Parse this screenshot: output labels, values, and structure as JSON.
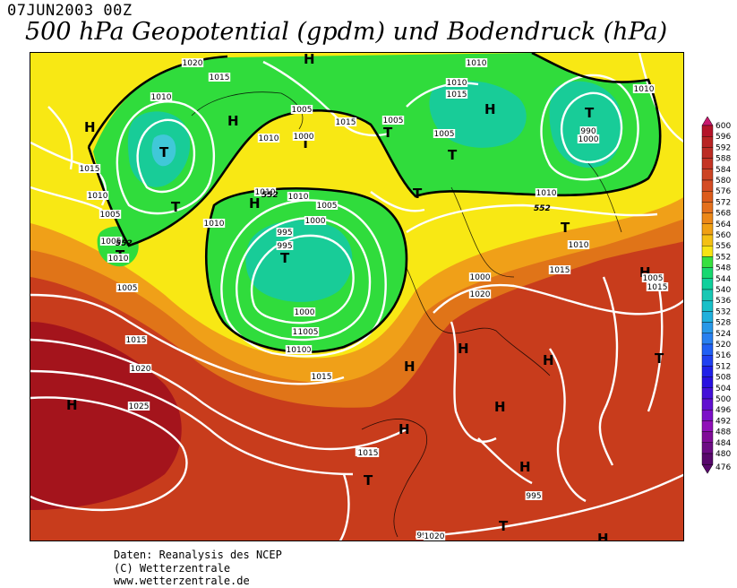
{
  "header": {
    "datetime": "07JUN2003 00Z",
    "title": "500 hPa Geopotential (gpdm) und Bodendruck (hPa)"
  },
  "footer": {
    "line1": "Daten: Reanalysis des NCEP",
    "line2": "(C) Wetterzentrale",
    "line3": "www.wetterzentrale.de"
  },
  "legend": {
    "levels": [
      "600",
      "596",
      "592",
      "588",
      "584",
      "580",
      "576",
      "572",
      "568",
      "564",
      "560",
      "556",
      "552",
      "548",
      "544",
      "540",
      "536",
      "532",
      "528",
      "524",
      "520",
      "516",
      "512",
      "508",
      "504",
      "500",
      "496",
      "492",
      "488",
      "484",
      "480",
      "476"
    ],
    "colors": [
      "#c8186e",
      "#b4142a",
      "#b82424",
      "#bc2c24",
      "#c43424",
      "#cc4424",
      "#d44c24",
      "#dc5c1c",
      "#e4701c",
      "#ec8818",
      "#f0a014",
      "#f4c014",
      "#f8e414",
      "#38e040",
      "#18d870",
      "#10d09c",
      "#18c8b4",
      "#18c0c8",
      "#20b0dc",
      "#2898e8",
      "#2880f0",
      "#2060f4",
      "#2040f0",
      "#2020e8",
      "#2810e0",
      "#4410d8",
      "#6010d0",
      "#7c10c8",
      "#9010b8",
      "#800c98",
      "#6c0c84",
      "#58086c"
    ]
  },
  "map": {
    "colors": {
      "dark_red": "#a4141c",
      "red": "#c83c1c",
      "orange": "#e07418",
      "light_orange": "#f0a018",
      "yellow": "#f8e814",
      "green": "#30dc3c",
      "teal": "#18cc98",
      "cyan": "#40c8d8",
      "contour": "#ffffff"
    },
    "highs_label": "H",
    "lows_label": "T",
    "isobar_labels": [
      "1020",
      "1015",
      "1010",
      "1005",
      "1010",
      "1015",
      "1005",
      "1010",
      "1010",
      "1015",
      "1005",
      "1000",
      "1010",
      "1010",
      "1015",
      "1010",
      "1005",
      "1010",
      "1005",
      "1010",
      "1000",
      "995",
      "1005",
      "1000",
      "995",
      "990",
      "1000",
      "1005",
      "1010",
      "1015",
      "1015",
      "1020",
      "1025",
      "1015",
      "1020",
      "1015",
      "1010",
      "1010",
      "1005",
      "1005",
      "1010",
      "990",
      "995",
      "1000",
      "1020",
      "1015",
      "1015",
      "1010",
      "1005"
    ],
    "geopotential_labels": [
      "552",
      "552",
      "552"
    ]
  }
}
